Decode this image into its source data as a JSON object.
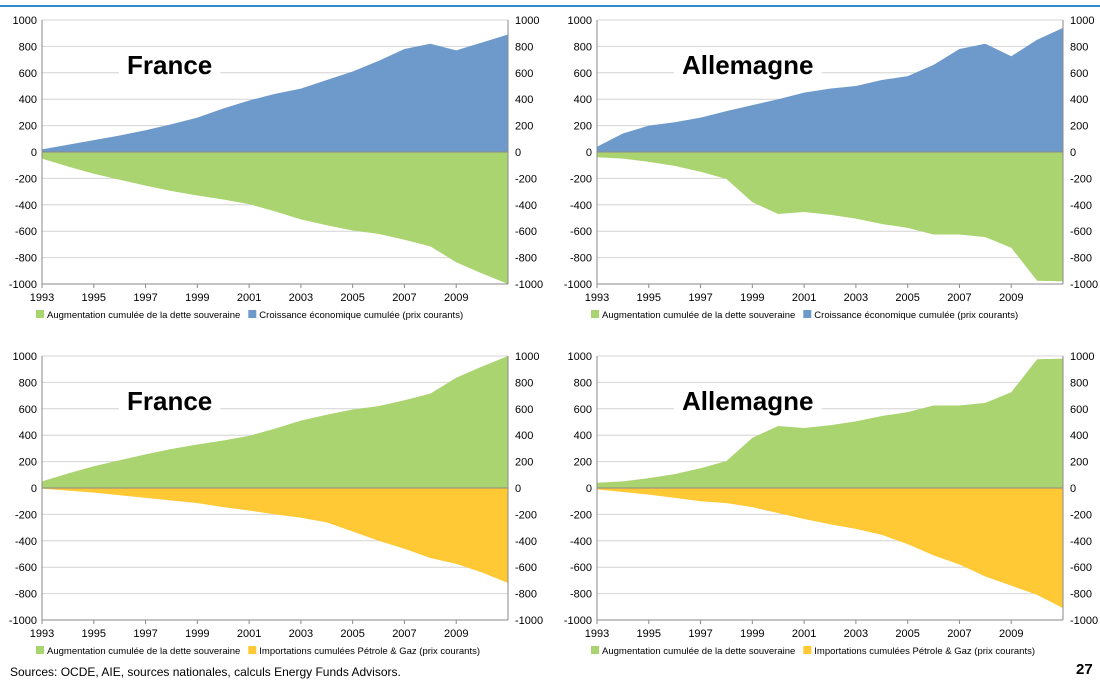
{
  "colors": {
    "debt": "#a9d46f",
    "growth": "#6e9acb",
    "imports": "#ffc935",
    "header_rule": "#2e8bd0"
  },
  "footer": {
    "sources": "Sources: OCDE, AIE, sources nationales, calculs Energy Funds Advisors.",
    "page_number": "27"
  },
  "chart_data": [
    {
      "type": "area",
      "region": "France",
      "x": [
        1993,
        1994,
        1995,
        1996,
        1997,
        1998,
        1999,
        2000,
        2001,
        2002,
        2003,
        2004,
        2005,
        2006,
        2007,
        2008,
        2009,
        2010,
        2011
      ],
      "x_ticks": [
        "1993",
        "1995",
        "1997",
        "1999",
        "2001",
        "2003",
        "2005",
        "2007",
        "2009"
      ],
      "ylim": [
        -1000,
        1000
      ],
      "y_ticks": [
        1000,
        800,
        600,
        400,
        200,
        0,
        -200,
        -400,
        -600,
        -800,
        -1000
      ],
      "series": [
        {
          "name": "Croissance économique cumulée (prix courants)",
          "color_key": "growth",
          "values": [
            20,
            55,
            90,
            125,
            165,
            210,
            260,
            330,
            390,
            440,
            480,
            545,
            610,
            690,
            780,
            820,
            770,
            830,
            890
          ]
        },
        {
          "name": "Augmentation cumulée de la dette souveraine",
          "color_key": "debt",
          "values": [
            -50,
            -110,
            -165,
            -210,
            -255,
            -295,
            -330,
            -360,
            -395,
            -450,
            -510,
            -555,
            -595,
            -620,
            -665,
            -715,
            -835,
            -920,
            -1000
          ]
        }
      ],
      "legend": [
        "Augmentation cumulée de la dette souveraine",
        "Croissance économique cumulée (prix courants)"
      ],
      "legend_color_keys": [
        "debt",
        "growth"
      ]
    },
    {
      "type": "area",
      "region": "Allemagne",
      "x": [
        1993,
        1994,
        1995,
        1996,
        1997,
        1998,
        1999,
        2000,
        2001,
        2002,
        2003,
        2004,
        2005,
        2006,
        2007,
        2008,
        2009,
        2010,
        2011
      ],
      "x_ticks": [
        "1993",
        "1995",
        "1997",
        "1999",
        "2001",
        "2003",
        "2005",
        "2007",
        "2009"
      ],
      "ylim": [
        -1000,
        1000
      ],
      "y_ticks": [
        "1000",
        "800",
        "600",
        "400",
        "200",
        "0",
        "-200",
        "-400",
        "-600",
        "-800",
        "-1000"
      ],
      "series": [
        {
          "name": "Croissance économique cumulée (prix courants)",
          "color_key": "growth",
          "values": [
            40,
            140,
            200,
            225,
            260,
            310,
            355,
            400,
            450,
            480,
            500,
            545,
            575,
            660,
            780,
            820,
            725,
            850,
            940
          ]
        },
        {
          "name": "Augmentation cumulée de la dette souveraine",
          "color_key": "debt",
          "values": [
            -40,
            -50,
            -75,
            -105,
            -150,
            -205,
            -380,
            -470,
            -455,
            -475,
            -505,
            -545,
            -575,
            -625,
            -625,
            -645,
            -725,
            -975,
            -980
          ]
        }
      ],
      "legend": [
        "Augmentation cumulée de la dette souveraine",
        "Croissance économique cumulée (prix courants)"
      ],
      "legend_color_keys": [
        "debt",
        "growth"
      ]
    },
    {
      "type": "area",
      "region": "France",
      "x": [
        1993,
        1994,
        1995,
        1996,
        1997,
        1998,
        1999,
        2000,
        2001,
        2002,
        2003,
        2004,
        2005,
        2006,
        2007,
        2008,
        2009,
        2010,
        2011
      ],
      "x_ticks": [
        "1993",
        "1995",
        "1997",
        "1999",
        "2001",
        "2003",
        "2005",
        "2007",
        "2009"
      ],
      "ylim": [
        -1000,
        1000
      ],
      "y_ticks": [
        1000,
        800,
        600,
        400,
        200,
        0,
        -200,
        -400,
        -600,
        -800,
        -1000
      ],
      "series": [
        {
          "name": "Augmentation cumulée de la dette souveraine",
          "color_key": "debt",
          "values": [
            50,
            110,
            165,
            210,
            255,
            295,
            330,
            360,
            395,
            450,
            510,
            555,
            595,
            620,
            665,
            715,
            835,
            920,
            1000
          ]
        },
        {
          "name": "Importations cumulées Pétrole & Gaz (prix courants)",
          "color_key": "imports",
          "values": [
            -5,
            -20,
            -35,
            -55,
            -75,
            -95,
            -115,
            -145,
            -170,
            -200,
            -225,
            -260,
            -330,
            -400,
            -460,
            -530,
            -575,
            -640,
            -720
          ]
        }
      ],
      "legend": [
        "Augmentation cumulée de la dette souveraine",
        "Importations cumulées Pétrole & Gaz (prix courants)"
      ],
      "legend_color_keys": [
        "debt",
        "imports"
      ]
    },
    {
      "type": "area",
      "region": "Allemagne",
      "x": [
        1993,
        1994,
        1995,
        1996,
        1997,
        1998,
        1999,
        2000,
        2001,
        2002,
        2003,
        2004,
        2005,
        2006,
        2007,
        2008,
        2009,
        2010,
        2011
      ],
      "x_ticks": [
        "1993",
        "1995",
        "1997",
        "1999",
        "2001",
        "2003",
        "2005",
        "2007",
        "2009"
      ],
      "ylim": [
        -1000,
        1000
      ],
      "y_ticks": [
        "1000",
        "800",
        "600",
        "400",
        "200",
        "0",
        "-200",
        "-400",
        "-600",
        "-800",
        "-1000"
      ],
      "series": [
        {
          "name": "Augmentation cumulée de la dette souveraine",
          "color_key": "debt",
          "values": [
            40,
            50,
            75,
            105,
            150,
            205,
            380,
            470,
            455,
            475,
            505,
            545,
            575,
            625,
            625,
            645,
            725,
            975,
            980
          ]
        },
        {
          "name": "Importations cumulées Pétrole & Gaz (prix courants)",
          "color_key": "imports",
          "values": [
            -10,
            -30,
            -50,
            -75,
            -100,
            -115,
            -145,
            -190,
            -235,
            -275,
            -310,
            -355,
            -425,
            -510,
            -580,
            -670,
            -740,
            -810,
            -910
          ]
        }
      ],
      "legend": [
        "Augmentation cumulée de la dette souveraine",
        "Importations cumulées Pétrole & Gaz (prix courants)"
      ],
      "legend_color_keys": [
        "debt",
        "imports"
      ]
    }
  ]
}
